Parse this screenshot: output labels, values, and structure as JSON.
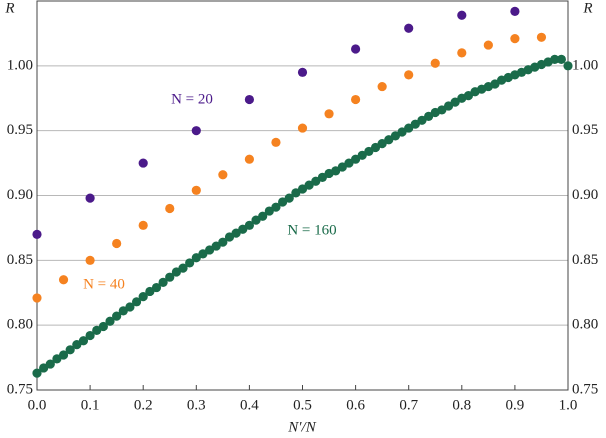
{
  "chart_data": {
    "type": "scatter",
    "y_label": "R",
    "x_label": "N′/N",
    "xlim": [
      0,
      1
    ],
    "ylim": [
      0.75,
      1.05
    ],
    "xticks": [
      {
        "value": 0,
        "label": "0.0"
      },
      {
        "value": 0.1,
        "label": "0.1"
      },
      {
        "value": 0.2,
        "label": "0.2"
      },
      {
        "value": 0.3,
        "label": "0.3"
      },
      {
        "value": 0.4,
        "label": "0.4"
      },
      {
        "value": 0.5,
        "label": "0.5"
      },
      {
        "value": 0.6,
        "label": "0.6"
      },
      {
        "value": 0.7,
        "label": "0.7"
      },
      {
        "value": 0.8,
        "label": "0.8"
      },
      {
        "value": 0.9,
        "label": "0.9"
      },
      {
        "value": 1,
        "label": "1.0"
      }
    ],
    "yticks": [
      {
        "value": 0.75,
        "label": "0.75"
      },
      {
        "value": 0.8,
        "label": "0.80"
      },
      {
        "value": 0.85,
        "label": "0.85"
      },
      {
        "value": 0.9,
        "label": "0.90"
      },
      {
        "value": 0.95,
        "label": "0.95"
      },
      {
        "value": 1,
        "label": "1.00"
      }
    ],
    "grid": true,
    "series": [
      {
        "name": "N = 20",
        "color": "#4b1a8a",
        "x": [
          0,
          0.1,
          0.2,
          0.3,
          0.4,
          0.5,
          0.6,
          0.7,
          0.8,
          0.9
        ],
        "values": [
          0.87,
          0.898,
          0.925,
          0.95,
          0.974,
          0.995,
          1.013,
          1.029,
          1.039,
          1.042
        ]
      },
      {
        "name": "N = 40",
        "color": "#f58220",
        "x": [
          0,
          0.05,
          0.1,
          0.15,
          0.2,
          0.25,
          0.3,
          0.35,
          0.4,
          0.45,
          0.5,
          0.55,
          0.6,
          0.65,
          0.7,
          0.75,
          0.8,
          0.85,
          0.9,
          0.95
        ],
        "values": [
          0.821,
          0.835,
          0.85,
          0.863,
          0.877,
          0.89,
          0.904,
          0.916,
          0.928,
          0.941,
          0.952,
          0.963,
          0.974,
          0.984,
          0.993,
          1.002,
          1.01,
          1.016,
          1.021,
          1.022
        ]
      },
      {
        "name": "N = 160",
        "color": "#1a6b4a",
        "x": [
          0,
          0.0125,
          0.025,
          0.0375,
          0.05,
          0.0625,
          0.075,
          0.0875,
          0.1,
          0.1125,
          0.125,
          0.1375,
          0.15,
          0.1625,
          0.175,
          0.1875,
          0.2,
          0.2125,
          0.225,
          0.2375,
          0.25,
          0.2625,
          0.275,
          0.2875,
          0.3,
          0.3125,
          0.325,
          0.3375,
          0.35,
          0.3625,
          0.375,
          0.3875,
          0.4,
          0.4125,
          0.425,
          0.4375,
          0.45,
          0.4625,
          0.475,
          0.4875,
          0.5,
          0.5125,
          0.525,
          0.5375,
          0.55,
          0.5625,
          0.575,
          0.5875,
          0.6,
          0.6125,
          0.625,
          0.6375,
          0.65,
          0.6625,
          0.675,
          0.6875,
          0.7,
          0.7125,
          0.725,
          0.7375,
          0.75,
          0.7625,
          0.775,
          0.7875,
          0.8,
          0.8125,
          0.825,
          0.8375,
          0.85,
          0.8625,
          0.875,
          0.8875,
          0.9,
          0.9125,
          0.925,
          0.9375,
          0.95,
          0.9625,
          0.975,
          0.9875,
          1
        ],
        "values": [
          0.763,
          0.767,
          0.77,
          0.774,
          0.777,
          0.781,
          0.785,
          0.788,
          0.792,
          0.796,
          0.799,
          0.803,
          0.807,
          0.811,
          0.814,
          0.818,
          0.822,
          0.826,
          0.829,
          0.833,
          0.837,
          0.841,
          0.844,
          0.848,
          0.852,
          0.855,
          0.858,
          0.861,
          0.864,
          0.868,
          0.871,
          0.874,
          0.877,
          0.881,
          0.884,
          0.888,
          0.891,
          0.895,
          0.898,
          0.902,
          0.905,
          0.908,
          0.911,
          0.914,
          0.917,
          0.919,
          0.922,
          0.925,
          0.928,
          0.931,
          0.934,
          0.937,
          0.94,
          0.943,
          0.946,
          0.949,
          0.952,
          0.955,
          0.958,
          0.961,
          0.964,
          0.966,
          0.969,
          0.972,
          0.975,
          0.977,
          0.98,
          0.982,
          0.984,
          0.986,
          0.989,
          0.991,
          0.993,
          0.995,
          0.997,
          0.999,
          1.001,
          1.003,
          1.005,
          1.005,
          1.0
        ]
      }
    ]
  }
}
